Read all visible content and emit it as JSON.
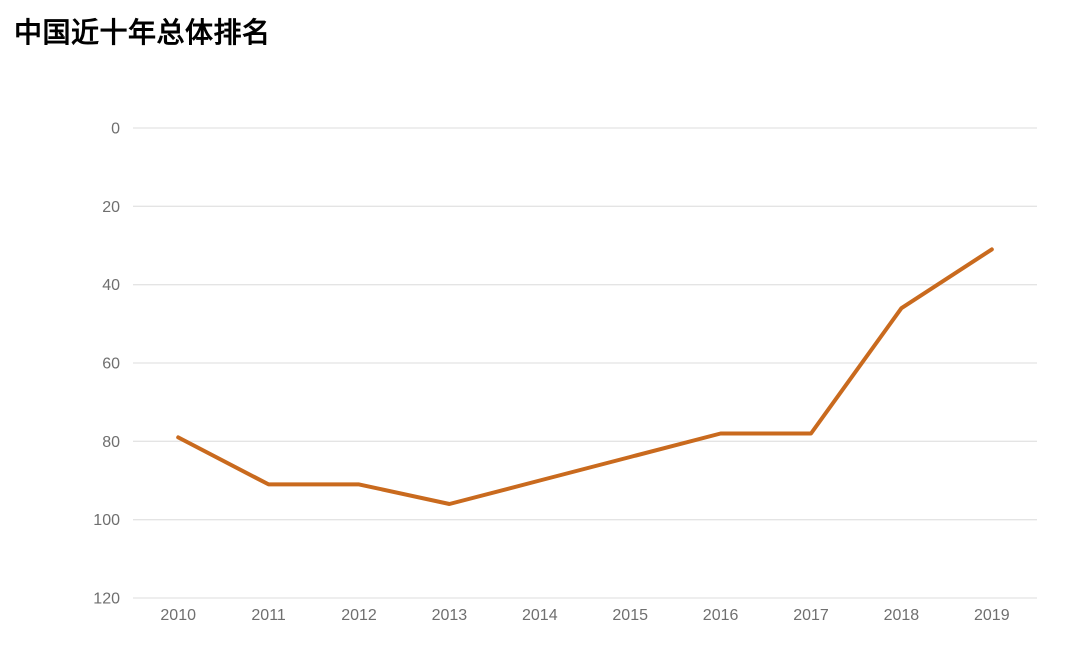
{
  "title": "中国近十年总体排名",
  "chart_data": {
    "type": "line",
    "title": "中国近十年总体排名",
    "categories": [
      "2010",
      "2011",
      "2012",
      "2013",
      "2014",
      "2015",
      "2016",
      "2017",
      "2018",
      "2019"
    ],
    "series": [
      {
        "name": "总体排名",
        "values": [
          79,
          91,
          91,
          96,
          90,
          84,
          78,
          78,
          46,
          31
        ]
      }
    ],
    "xlabel": "",
    "ylabel": "",
    "y_ticks": [
      0,
      20,
      40,
      60,
      80,
      100,
      120
    ],
    "ylim": [
      0,
      120
    ],
    "y_axis_inverted": true,
    "grid": true,
    "legend_position": "none",
    "colors": {
      "line": "#C96A1E",
      "gridline": "#E4E4E4",
      "tick_label": "#6F6F6F",
      "title": "#000000",
      "background": "#FFFFFF"
    }
  }
}
